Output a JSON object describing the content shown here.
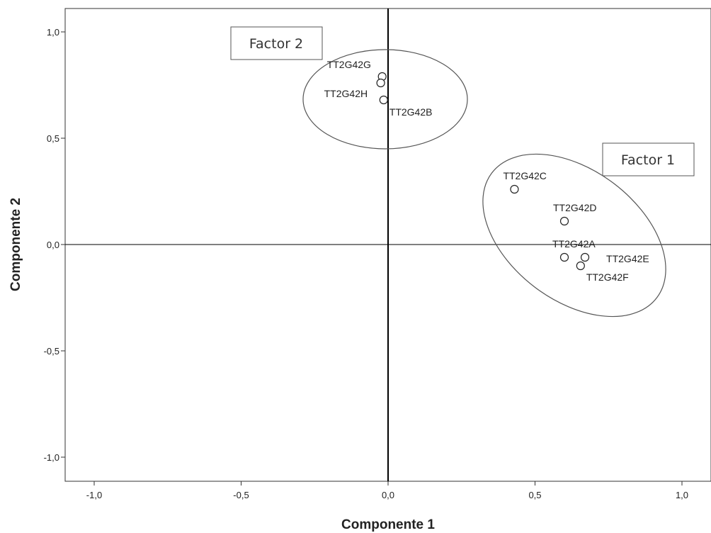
{
  "chart_data": {
    "type": "scatter",
    "title": "",
    "xlabel": "Componente 1",
    "ylabel": "Componente 2",
    "xlim": [
      -1.1,
      1.1
    ],
    "ylim": [
      -1.1,
      1.1
    ],
    "xticks": [
      -1.0,
      -0.5,
      0.0,
      0.5,
      1.0
    ],
    "yticks": [
      -1.0,
      -0.5,
      0.0,
      0.5,
      1.0
    ],
    "xtick_labels": [
      "-1,0",
      "-0,5",
      "0,0",
      "0,5",
      "1,0"
    ],
    "ytick_labels": [
      "-1,0",
      "-0,5",
      "0,0",
      "0,5",
      "1,0"
    ],
    "grid": false,
    "reference_lines": {
      "x": 0,
      "y": 0
    },
    "points": [
      {
        "label": "TT2G42G",
        "x": -0.02,
        "y": 0.79
      },
      {
        "label": "TT2G42H",
        "x": -0.025,
        "y": 0.76
      },
      {
        "label": "TT2G42B",
        "x": -0.015,
        "y": 0.68
      },
      {
        "label": "TT2G42C",
        "x": 0.43,
        "y": 0.26
      },
      {
        "label": "TT2G42D",
        "x": 0.6,
        "y": 0.11
      },
      {
        "label": "TT2G42A",
        "x": 0.6,
        "y": -0.06
      },
      {
        "label": "TT2G42E",
        "x": 0.67,
        "y": -0.06
      },
      {
        "label": "TT2G42F",
        "x": 0.655,
        "y": -0.1
      }
    ],
    "annotations": [
      {
        "text": "Factor 2"
      },
      {
        "text": "Factor 1"
      }
    ]
  }
}
